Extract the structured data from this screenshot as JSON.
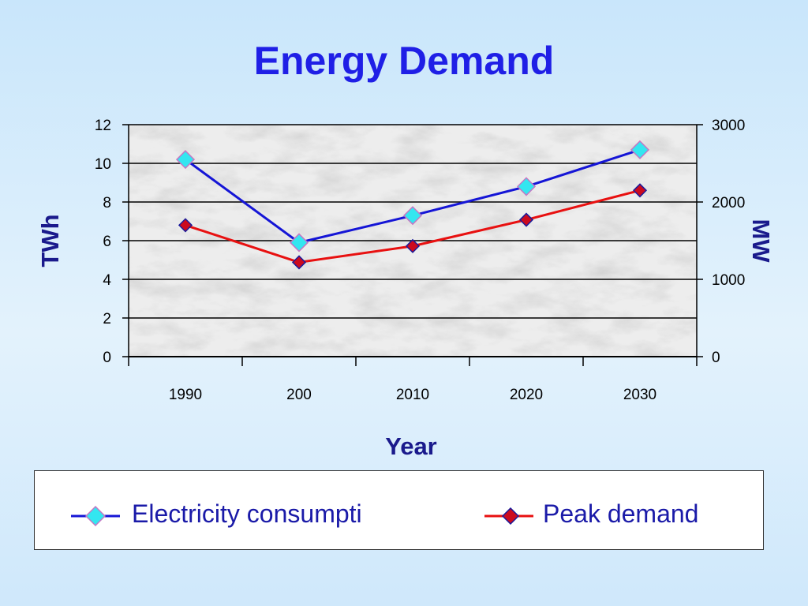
{
  "slide": {
    "title": "Energy Demand"
  },
  "chart_data": {
    "type": "line",
    "title": "",
    "xlabel": "Year",
    "ylabel": "TWh",
    "y2label": "MW",
    "categories": [
      "1990",
      "200",
      "2010",
      "2020",
      "2030"
    ],
    "ylim": [
      0,
      12
    ],
    "y2lim": [
      0,
      3000
    ],
    "yticks": [
      "0",
      "2",
      "4",
      "6",
      "8",
      "10",
      "12"
    ],
    "y2ticks": [
      "0",
      "1000",
      "2000",
      "3000"
    ],
    "grid": "horizontal",
    "legend_position": "bottom",
    "series": [
      {
        "name": "Electricity consumpti",
        "axis": "left",
        "values": [
          10.2,
          5.9,
          7.3,
          8.8,
          10.7
        ],
        "line_color": "#1515d6",
        "marker_color": "#33e6f0"
      },
      {
        "name": "Peak demand",
        "axis": "right",
        "values": [
          1700,
          1220,
          1430,
          1770,
          2150
        ],
        "line_color": "#e81010",
        "marker_color": "#cc0a1e"
      }
    ]
  }
}
